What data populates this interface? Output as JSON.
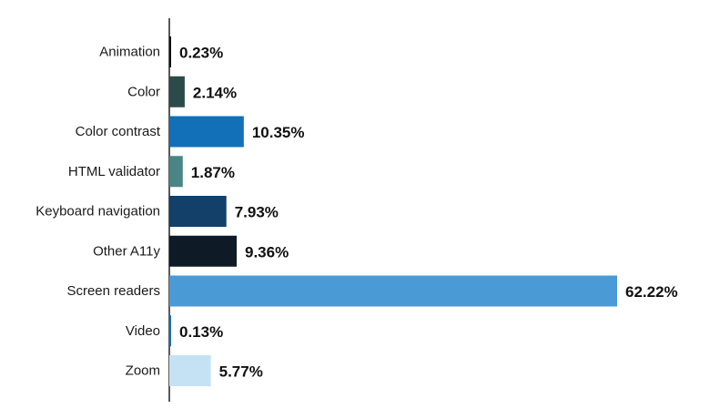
{
  "chart_data": {
    "type": "bar",
    "orientation": "horizontal",
    "title": "",
    "xlabel": "",
    "ylabel": "",
    "grid": false,
    "legend": "none",
    "categories": [
      "Animation",
      "Color",
      "Color contrast",
      "HTML validator",
      "Keyboard navigation",
      "Other A11y",
      "Screen readers",
      "Video",
      "Zoom"
    ],
    "values": [
      0.23,
      2.14,
      10.35,
      1.87,
      7.93,
      9.36,
      62.22,
      0.13,
      5.77
    ],
    "value_labels": [
      "0.23%",
      "2.14%",
      "10.35%",
      "1.87%",
      "7.93%",
      "9.36%",
      "62.22%",
      "0.13%",
      "5.77%"
    ],
    "colors": [
      "#111111",
      "#2b4b4b",
      "#1170b8",
      "#4a8585",
      "#124069",
      "#0f1a27",
      "#4a9bd5",
      "#1170b8",
      "#c5e2f5"
    ],
    "xlim": [
      0,
      62.22
    ]
  }
}
